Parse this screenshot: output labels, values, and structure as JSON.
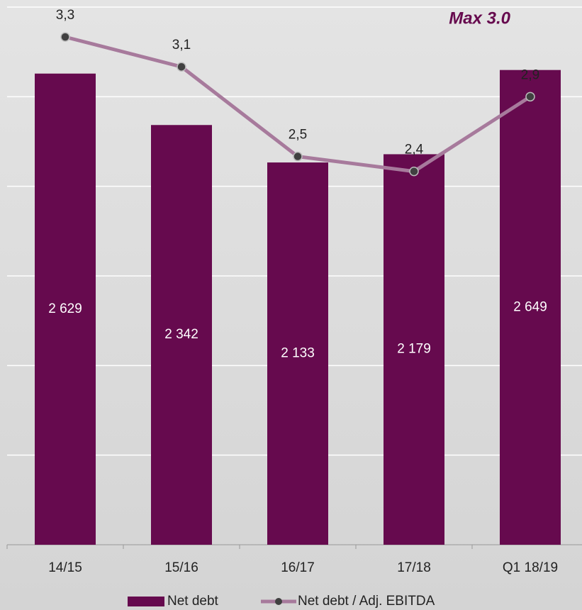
{
  "chart_data": {
    "type": "bar-line",
    "annotation": "Max 3.0",
    "categories": [
      "14/15",
      "15/16",
      "16/17",
      "17/18",
      "Q1 18/19"
    ],
    "series": [
      {
        "name": "Net debt",
        "type": "bar",
        "color": "#660a4e",
        "values": [
          2629,
          2342,
          2133,
          2179,
          2649
        ],
        "value_labels": [
          "2 629",
          "2 342",
          "2 133",
          "2 179",
          "2 649"
        ]
      },
      {
        "name": "Net debt / Adj. EBITDA",
        "type": "line",
        "axis": "y2",
        "color": "#a77a9c",
        "marker_color": "#404040",
        "values": [
          3.3,
          3.1,
          2.5,
          2.4,
          2.9
        ],
        "value_labels": [
          "3,3",
          "3,1",
          "2,5",
          "2,4",
          "2,9"
        ]
      }
    ],
    "ylim": [
      0,
      3000
    ],
    "yticks": [
      0,
      500,
      1000,
      1500,
      2000,
      2500,
      3000
    ],
    "y2lim": [
      -0.1,
      3.5
    ],
    "grid": true,
    "legend": "bottom"
  }
}
